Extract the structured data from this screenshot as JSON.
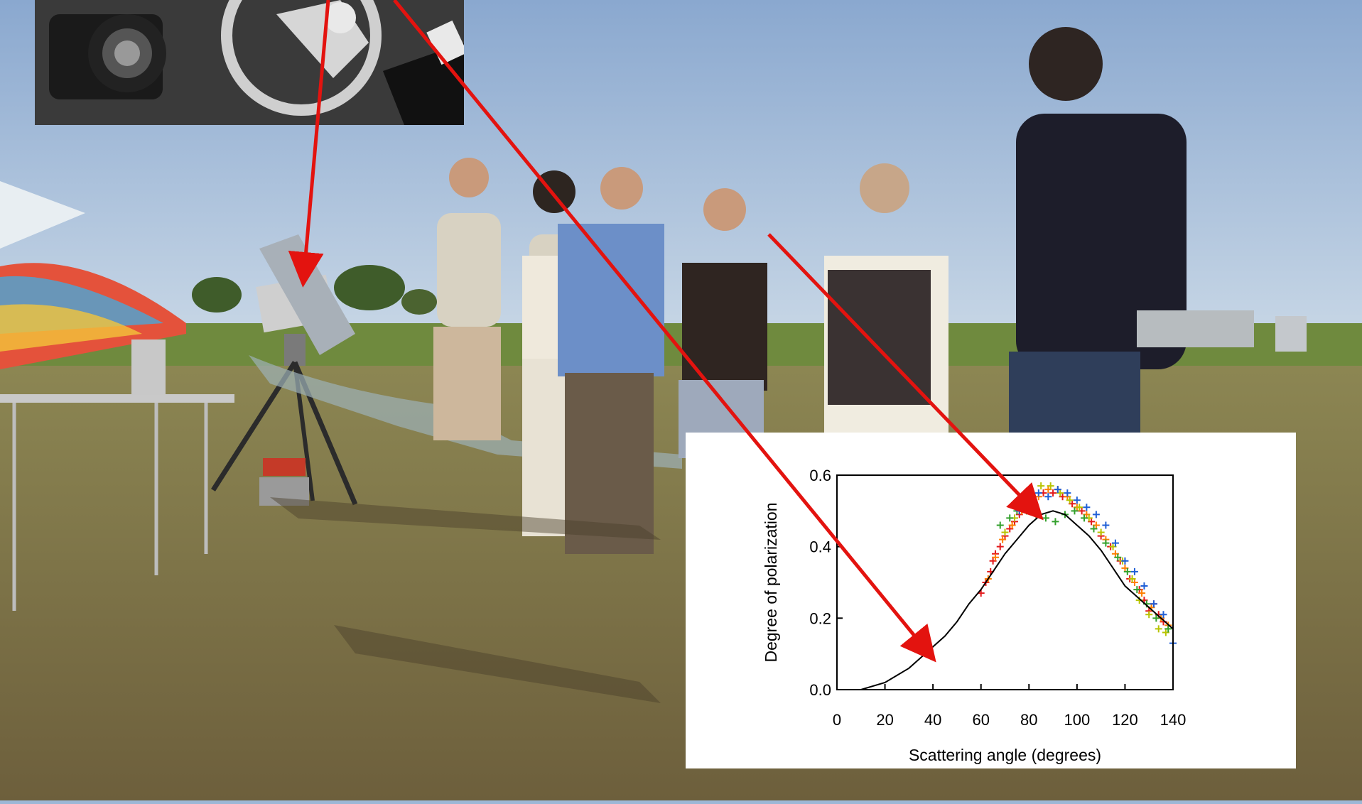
{
  "photo": {
    "description_free": true
  },
  "chart_data": {
    "type": "scatter",
    "title": "",
    "xlabel": "Scattering angle (degrees)",
    "ylabel": "Degree of polarization",
    "xlim": [
      0,
      140
    ],
    "ylim": [
      0,
      0.6
    ],
    "xticks": [
      0,
      20,
      40,
      60,
      80,
      100,
      120,
      140
    ],
    "yticks": [
      "0.0",
      "0.2",
      "0.4",
      "0.6"
    ],
    "grid": false,
    "series": [
      {
        "marker": "plus",
        "color": "#e31a1c",
        "points": [
          [
            60,
            0.27
          ],
          [
            62,
            0.3
          ],
          [
            64,
            0.33
          ],
          [
            65,
            0.36
          ],
          [
            66,
            0.38
          ],
          [
            68,
            0.4
          ],
          [
            70,
            0.43
          ],
          [
            72,
            0.45
          ],
          [
            74,
            0.47
          ],
          [
            76,
            0.49
          ],
          [
            78,
            0.51
          ],
          [
            82,
            0.53
          ],
          [
            86,
            0.55
          ],
          [
            90,
            0.55
          ],
          [
            94,
            0.54
          ],
          [
            98,
            0.52
          ],
          [
            102,
            0.5
          ],
          [
            106,
            0.47
          ],
          [
            110,
            0.43
          ],
          [
            114,
            0.4
          ],
          [
            118,
            0.36
          ],
          [
            122,
            0.31
          ],
          [
            126,
            0.28
          ],
          [
            128,
            0.25
          ],
          [
            130,
            0.22
          ],
          [
            132,
            0.24
          ],
          [
            134,
            0.21
          ],
          [
            136,
            0.19
          ]
        ]
      },
      {
        "marker": "plus",
        "color": "#ff7f00",
        "points": [
          [
            63,
            0.31
          ],
          [
            66,
            0.37
          ],
          [
            69,
            0.42
          ],
          [
            73,
            0.46
          ],
          [
            77,
            0.5
          ],
          [
            80,
            0.52
          ],
          [
            84,
            0.54
          ],
          [
            88,
            0.56
          ],
          [
            92,
            0.56
          ],
          [
            96,
            0.54
          ],
          [
            100,
            0.51
          ],
          [
            104,
            0.49
          ],
          [
            108,
            0.46
          ],
          [
            112,
            0.42
          ],
          [
            116,
            0.38
          ],
          [
            120,
            0.34
          ],
          [
            124,
            0.3
          ],
          [
            127,
            0.27
          ],
          [
            131,
            0.23
          ],
          [
            135,
            0.2
          ],
          [
            138,
            0.18
          ]
        ]
      },
      {
        "marker": "plus",
        "color": "#b8c400",
        "points": [
          [
            70,
            0.44
          ],
          [
            74,
            0.48
          ],
          [
            78,
            0.52
          ],
          [
            81,
            0.54
          ],
          [
            85,
            0.57
          ],
          [
            89,
            0.57
          ],
          [
            93,
            0.55
          ],
          [
            97,
            0.53
          ],
          [
            101,
            0.51
          ],
          [
            105,
            0.48
          ],
          [
            110,
            0.44
          ],
          [
            115,
            0.4
          ],
          [
            119,
            0.36
          ],
          [
            123,
            0.31
          ],
          [
            126,
            0.25
          ],
          [
            130,
            0.21
          ],
          [
            134,
            0.17
          ],
          [
            137,
            0.16
          ]
        ]
      },
      {
        "marker": "plus",
        "color": "#33a02c",
        "points": [
          [
            68,
            0.46
          ],
          [
            72,
            0.48
          ],
          [
            75,
            0.5
          ],
          [
            79,
            0.5
          ],
          [
            83,
            0.49
          ],
          [
            87,
            0.48
          ],
          [
            91,
            0.47
          ],
          [
            95,
            0.49
          ],
          [
            99,
            0.5
          ],
          [
            103,
            0.48
          ],
          [
            107,
            0.45
          ],
          [
            112,
            0.41
          ],
          [
            117,
            0.37
          ],
          [
            121,
            0.33
          ],
          [
            125,
            0.28
          ],
          [
            129,
            0.24
          ],
          [
            133,
            0.2
          ],
          [
            138,
            0.17
          ]
        ]
      },
      {
        "marker": "plus",
        "color": "#1f5fd6",
        "points": [
          [
            76,
            0.5
          ],
          [
            80,
            0.53
          ],
          [
            84,
            0.55
          ],
          [
            88,
            0.54
          ],
          [
            92,
            0.56
          ],
          [
            96,
            0.55
          ],
          [
            100,
            0.53
          ],
          [
            104,
            0.51
          ],
          [
            108,
            0.49
          ],
          [
            112,
            0.46
          ],
          [
            116,
            0.41
          ],
          [
            120,
            0.36
          ],
          [
            124,
            0.33
          ],
          [
            128,
            0.29
          ],
          [
            132,
            0.24
          ],
          [
            136,
            0.21
          ],
          [
            140,
            0.13
          ]
        ]
      }
    ],
    "curve": {
      "type": "line",
      "color": "#000000",
      "x": [
        0,
        10,
        20,
        30,
        35,
        40,
        45,
        50,
        55,
        60,
        65,
        70,
        75,
        80,
        85,
        90,
        95,
        100,
        105,
        110,
        115,
        120,
        125,
        130,
        135,
        140
      ],
      "y": [
        0.0,
        0.0,
        0.02,
        0.06,
        0.09,
        0.12,
        0.15,
        0.19,
        0.24,
        0.28,
        0.33,
        0.38,
        0.42,
        0.46,
        0.49,
        0.5,
        0.49,
        0.46,
        0.43,
        0.39,
        0.34,
        0.29,
        0.26,
        0.23,
        0.2,
        0.17
      ]
    }
  }
}
